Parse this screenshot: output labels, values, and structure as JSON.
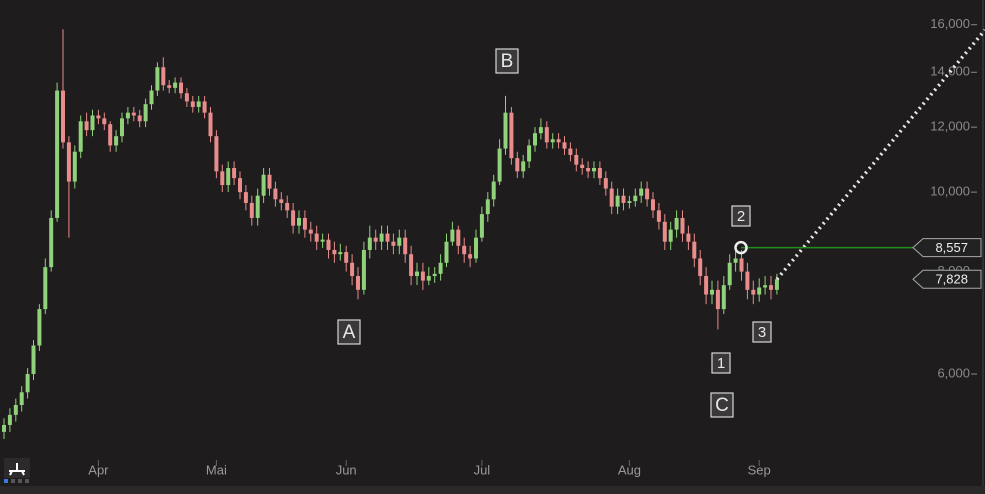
{
  "chart_data": {
    "type": "candlestick",
    "log_scale": true,
    "up_color": "#8fd27a",
    "down_color": "#e98c8c",
    "categories": [
      null,
      null,
      null,
      null,
      null,
      null,
      null,
      null,
      null,
      null,
      null,
      null,
      null,
      null,
      null,
      null,
      "Apr",
      null,
      null,
      null,
      null,
      null,
      null,
      null,
      null,
      null,
      null,
      null,
      null,
      null,
      null,
      null,
      null,
      null,
      null,
      null,
      "Mai",
      null,
      null,
      null,
      null,
      null,
      null,
      null,
      null,
      null,
      null,
      null,
      null,
      null,
      null,
      null,
      null,
      null,
      null,
      null,
      null,
      null,
      "Jun",
      null,
      null,
      null,
      null,
      null,
      null,
      null,
      null,
      null,
      null,
      null,
      null,
      null,
      null,
      null,
      null,
      null,
      null,
      null,
      null,
      null,
      null,
      "Jul",
      null,
      null,
      null,
      null,
      null,
      null,
      null,
      null,
      null,
      null,
      null,
      null,
      null,
      null,
      null,
      null,
      null,
      null,
      null,
      null,
      null,
      null,
      null,
      null,
      "Aug",
      null,
      null,
      null,
      null,
      null,
      null,
      null,
      null,
      null,
      null,
      null,
      null,
      null,
      null,
      null,
      null,
      null,
      null,
      null,
      null,
      null,
      "Sep",
      null,
      null,
      null
    ],
    "open": [
      5100,
      5200,
      5350,
      5500,
      5700,
      6000,
      6500,
      7200,
      8100,
      9300,
      13300,
      11500,
      10300,
      11200,
      12200,
      11900,
      12400,
      12300,
      12100,
      11400,
      11700,
      12300,
      12500,
      12400,
      12200,
      12800,
      13300,
      14200,
      13500,
      13400,
      13600,
      13200,
      12900,
      12700,
      12900,
      12500,
      11700,
      10600,
      10200,
      10700,
      10400,
      10000,
      9700,
      9300,
      9900,
      10500,
      10100,
      9800,
      9700,
      9500,
      9100,
      9300,
      9000,
      8900,
      8700,
      8750,
      8500,
      8400,
      8450,
      8200,
      7900,
      7600,
      8500,
      8800,
      8700,
      8900,
      8700,
      8600,
      8800,
      8400,
      7900,
      8000,
      7800,
      7900,
      7950,
      8200,
      8700,
      9000,
      8600,
      8400,
      8300,
      8800,
      9400,
      9800,
      10300,
      11300,
      12500,
      11000,
      10600,
      10900,
      11400,
      11800,
      12000,
      11500,
      11600,
      11500,
      11300,
      11100,
      10800,
      10700,
      10600,
      10700,
      10400,
      10100,
      9600,
      9900,
      9700,
      9750,
      9900,
      10100,
      9800,
      9500,
      9200,
      8700,
      9000,
      9300,
      8900,
      8700,
      8300,
      7900,
      7500,
      7600,
      7200,
      7700,
      8200,
      8300,
      8000,
      7600,
      7500,
      7650,
      7700,
      7600
    ],
    "high": [
      5300,
      5450,
      5600,
      5800,
      6100,
      6600,
      7300,
      8300,
      9500,
      13600,
      15800,
      11700,
      11400,
      12400,
      12500,
      12600,
      12600,
      12500,
      12200,
      11900,
      12500,
      12700,
      12700,
      12600,
      13000,
      13500,
      14400,
      14600,
      13700,
      13800,
      13800,
      13400,
      13100,
      13100,
      13100,
      12700,
      11900,
      10800,
      10900,
      10900,
      10600,
      10200,
      9900,
      10100,
      10700,
      10700,
      10300,
      10000,
      9900,
      9700,
      9500,
      9500,
      9200,
      9100,
      8900,
      8900,
      8700,
      8650,
      8600,
      8400,
      8100,
      8700,
      9100,
      9000,
      9100,
      9100,
      8900,
      9000,
      9000,
      8600,
      8200,
      8200,
      8100,
      8100,
      8400,
      8900,
      9200,
      9100,
      8800,
      8600,
      9000,
      9600,
      10000,
      10500,
      11600,
      13100,
      12700,
      11200,
      11100,
      11600,
      12000,
      12300,
      12200,
      11800,
      11800,
      11700,
      11500,
      11300,
      11000,
      10900,
      10900,
      10900,
      10600,
      10300,
      10100,
      10100,
      9900,
      10100,
      10300,
      10300,
      10000,
      9700,
      9400,
      9200,
      9500,
      9500,
      9100,
      8900,
      8500,
      8100,
      7800,
      7800,
      7900,
      8400,
      8500,
      8500,
      8200,
      7800,
      7850,
      7900,
      7900,
      7950
    ],
    "low": [
      5000,
      5100,
      5250,
      5400,
      5600,
      5900,
      6400,
      7100,
      8000,
      9200,
      11300,
      8800,
      10100,
      11000,
      11700,
      11700,
      12100,
      11900,
      11200,
      11200,
      11500,
      12100,
      12200,
      12000,
      12000,
      12600,
      13100,
      13300,
      13200,
      13200,
      13000,
      12700,
      12500,
      12500,
      12300,
      11500,
      10400,
      10000,
      10000,
      10200,
      9800,
      9500,
      9100,
      9100,
      9700,
      9900,
      9600,
      9500,
      9300,
      8900,
      8900,
      8800,
      8700,
      8500,
      8550,
      8300,
      8200,
      8250,
      8000,
      7700,
      7400,
      7500,
      8300,
      8500,
      8500,
      8500,
      8400,
      8400,
      8200,
      7700,
      7700,
      7600,
      7700,
      7750,
      7800,
      8100,
      8600,
      8400,
      8200,
      8100,
      8200,
      8700,
      9200,
      9600,
      10200,
      11100,
      10800,
      10400,
      10400,
      10700,
      11200,
      11600,
      11300,
      11300,
      11300,
      11100,
      10900,
      10600,
      10500,
      10400,
      10400,
      10200,
      9900,
      9400,
      9400,
      9500,
      9550,
      9600,
      9700,
      9600,
      9300,
      9000,
      8500,
      8500,
      8800,
      8700,
      8500,
      8100,
      7700,
      7300,
      7300,
      6800,
      7100,
      7600,
      8000,
      7800,
      7400,
      7300,
      7350,
      7500,
      7400,
      7500
    ],
    "close": [
      5200,
      5350,
      5500,
      5700,
      6000,
      6500,
      7200,
      8100,
      9300,
      13300,
      11500,
      10300,
      11200,
      12200,
      11900,
      12400,
      12300,
      12100,
      11400,
      11700,
      12300,
      12500,
      12400,
      12200,
      12800,
      13300,
      14200,
      13500,
      13400,
      13600,
      13200,
      12900,
      12700,
      12900,
      12500,
      11700,
      10600,
      10200,
      10700,
      10400,
      10000,
      9700,
      9300,
      9900,
      10500,
      10100,
      9800,
      9700,
      9500,
      9100,
      9300,
      9000,
      8900,
      8700,
      8750,
      8500,
      8400,
      8450,
      8200,
      7900,
      7600,
      8500,
      8800,
      8700,
      8900,
      8700,
      8600,
      8800,
      8400,
      7900,
      8000,
      7800,
      7900,
      7950,
      8200,
      8700,
      9000,
      8600,
      8400,
      8300,
      8800,
      9400,
      9800,
      10300,
      11300,
      12500,
      11000,
      10600,
      10900,
      11400,
      11800,
      12000,
      11500,
      11600,
      11500,
      11300,
      11100,
      10800,
      10700,
      10600,
      10700,
      10400,
      10100,
      9600,
      9900,
      9700,
      9750,
      9900,
      10100,
      9800,
      9500,
      9200,
      8700,
      9000,
      9300,
      8900,
      8700,
      8300,
      7900,
      7500,
      7600,
      7200,
      7700,
      8200,
      8300,
      8000,
      7600,
      7500,
      7650,
      7700,
      7600,
      7828
    ],
    "ylim": [
      4713,
      17150
    ],
    "yticks": [
      {
        "value": 6000,
        "label": "6,000"
      },
      {
        "value": 8000,
        "label": "8,000"
      },
      {
        "value": 10000,
        "label": "10,000"
      },
      {
        "value": 12000,
        "label": "12,000"
      },
      {
        "value": 14000,
        "label": "14,000"
      },
      {
        "value": 16000,
        "label": "16,000"
      }
    ],
    "price_lines": [
      {
        "value": 8557,
        "label": "8,557",
        "color": "#1f8f1f"
      },
      {
        "value": 7828,
        "label": "7,828"
      }
    ],
    "annotations": [
      "A",
      "B",
      "C",
      "1",
      "2",
      "3"
    ]
  }
}
